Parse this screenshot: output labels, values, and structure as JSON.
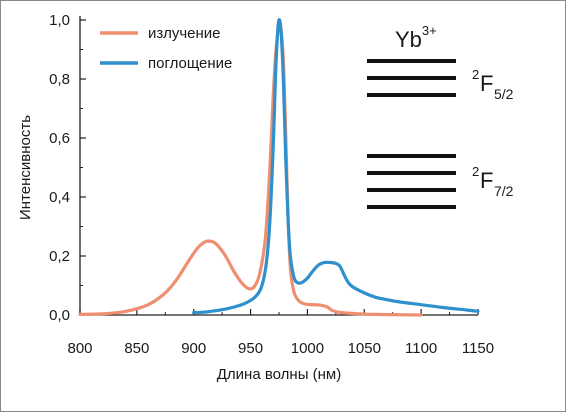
{
  "chart_data": {
    "type": "line",
    "xlabel": "Длина волны (нм)",
    "ylabel": "Интенсивность",
    "xlim": [
      800,
      1150
    ],
    "ylim": [
      0,
      1.0
    ],
    "x_ticks": [
      800,
      850,
      900,
      950,
      1000,
      1050,
      1100,
      1150
    ],
    "y_ticks": [
      0.0,
      0.2,
      0.4,
      0.6,
      0.8,
      1.0
    ],
    "x_tick_labels": [
      "800",
      "850",
      "900",
      "950",
      "1000",
      "1050",
      "1100",
      "1150"
    ],
    "y_tick_labels": [
      "0,0",
      "0,2",
      "0,4",
      "0,6",
      "0,8",
      "1,0"
    ],
    "legend_position": "top-left",
    "grid": false,
    "series": [
      {
        "name": "излучение",
        "color": "#ef8f70",
        "x": [
          800,
          820,
          840,
          860,
          875,
          885,
          895,
          903,
          910,
          915,
          920,
          928,
          935,
          942,
          948,
          953,
          958,
          963,
          967,
          970,
          972,
          974,
          975.5,
          977,
          979,
          981,
          983,
          985,
          988,
          992,
          997,
          1003,
          1010,
          1017,
          1022,
          1030,
          1045,
          1060,
          1080,
          1100
        ],
        "values": [
          0.002,
          0.004,
          0.012,
          0.035,
          0.075,
          0.12,
          0.18,
          0.225,
          0.248,
          0.25,
          0.24,
          0.2,
          0.15,
          0.11,
          0.09,
          0.095,
          0.14,
          0.26,
          0.5,
          0.75,
          0.88,
          0.96,
          0.99,
          0.96,
          0.85,
          0.6,
          0.33,
          0.16,
          0.08,
          0.05,
          0.038,
          0.035,
          0.034,
          0.028,
          0.015,
          0.008,
          0.004,
          0.002,
          0.001,
          0.0
        ]
      },
      {
        "name": "поглощение",
        "color": "#2f90cc",
        "x": [
          900,
          910,
          920,
          930,
          940,
          948,
          955,
          960,
          964,
          967,
          970,
          972,
          974,
          975.5,
          977,
          979,
          981,
          983,
          985,
          988,
          991,
          995,
          1000,
          1005,
          1010,
          1015,
          1020,
          1025,
          1028,
          1030,
          1033,
          1036,
          1040,
          1050,
          1060,
          1070,
          1080,
          1100,
          1120,
          1140,
          1150
        ],
        "values": [
          0.008,
          0.01,
          0.015,
          0.022,
          0.032,
          0.045,
          0.065,
          0.1,
          0.18,
          0.32,
          0.58,
          0.82,
          0.97,
          1.0,
          0.95,
          0.78,
          0.52,
          0.32,
          0.2,
          0.13,
          0.11,
          0.11,
          0.125,
          0.15,
          0.17,
          0.178,
          0.178,
          0.175,
          0.168,
          0.155,
          0.13,
          0.11,
          0.095,
          0.075,
          0.06,
          0.052,
          0.045,
          0.035,
          0.025,
          0.017,
          0.012
        ]
      }
    ]
  },
  "inset": {
    "ion_base": "Yb",
    "ion_charge": "3+",
    "levels": [
      {
        "pre": "2",
        "main": "F",
        "sub": "5/2",
        "lines": 3
      },
      {
        "pre": "2",
        "main": "F",
        "sub": "7/2",
        "lines": 4
      }
    ]
  }
}
